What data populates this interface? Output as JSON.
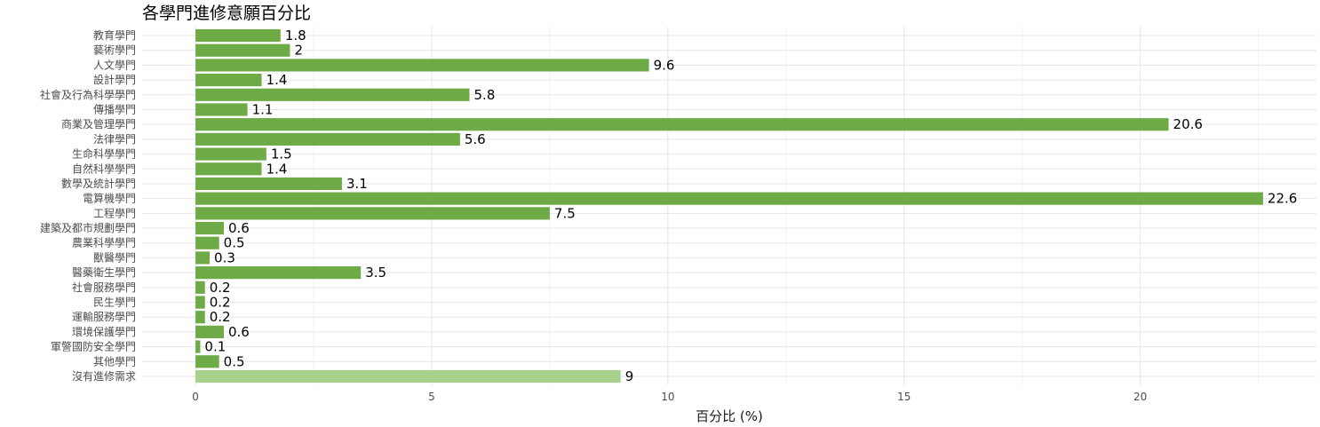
{
  "chart_data": {
    "type": "bar",
    "orientation": "horizontal",
    "title": "各學門進修意願百分比",
    "xlabel": "百分比 (%)",
    "ylabel": "",
    "categories": [
      "教育學門",
      "藝術學門",
      "人文學門",
      "設計學門",
      "社會及行為科學學門",
      "傳播學門",
      "商業及管理學門",
      "法律學門",
      "生命科學學門",
      "自然科學學門",
      "數學及統計學門",
      "電算機學門",
      "工程學門",
      "建築及都市規劃學門",
      "農業科學學門",
      "獸醫學門",
      "醫藥衛生學門",
      "社會服務學門",
      "民生學門",
      "運輸服務學門",
      "環境保護學門",
      "軍警國防安全學門",
      "其他學門",
      "沒有進修需求"
    ],
    "values": [
      1.8,
      2,
      9.6,
      1.4,
      5.8,
      1.1,
      20.6,
      5.6,
      1.5,
      1.4,
      3.1,
      22.6,
      7.5,
      0.6,
      0.5,
      0.3,
      3.5,
      0.2,
      0.2,
      0.2,
      0.6,
      0.1,
      0.5,
      9
    ],
    "bar_colors": [
      "#6eab47",
      "#6eab47",
      "#6eab47",
      "#6eab47",
      "#6eab47",
      "#6eab47",
      "#6eab47",
      "#6eab47",
      "#6eab47",
      "#6eab47",
      "#6eab47",
      "#6eab47",
      "#6eab47",
      "#6eab47",
      "#6eab47",
      "#6eab47",
      "#6eab47",
      "#6eab47",
      "#6eab47",
      "#6eab47",
      "#6eab47",
      "#6eab47",
      "#6eab47",
      "#a9d18e"
    ],
    "xticks": [
      0,
      5,
      10,
      15,
      20
    ],
    "xlim": [
      -1.13,
      23.73
    ],
    "grid": true,
    "legend": "none"
  }
}
